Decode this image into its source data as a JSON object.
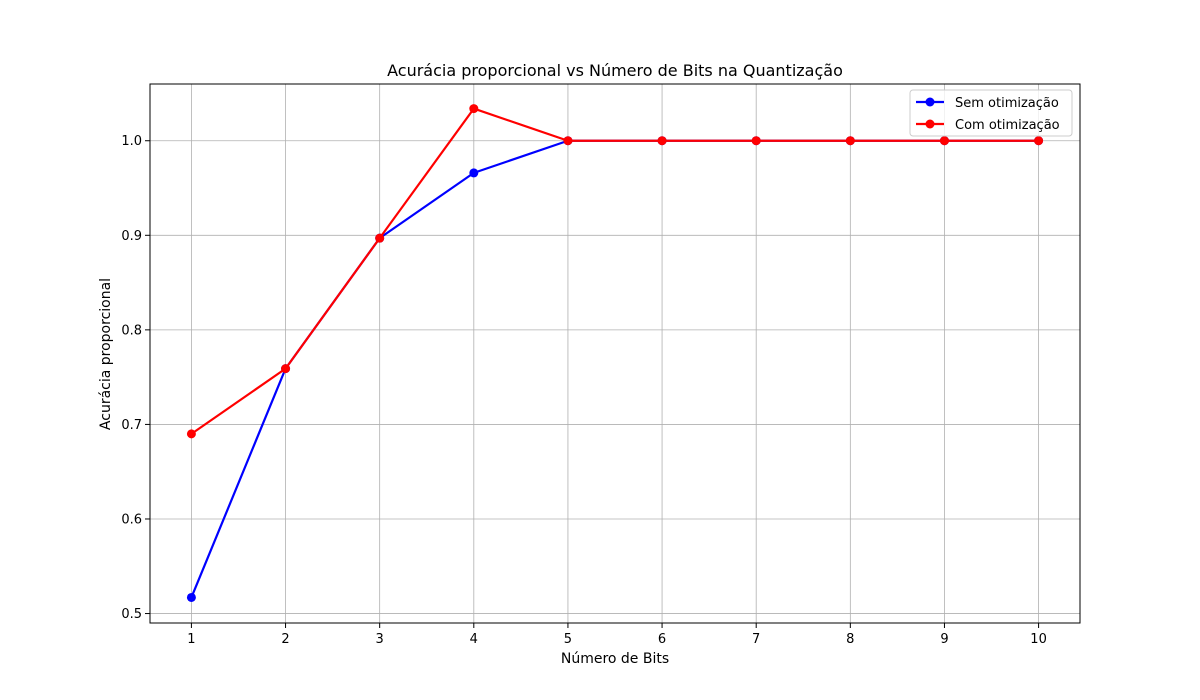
{
  "chart_data": {
    "type": "line",
    "title": "Acurácia proporcional vs Número de Bits na Quantização",
    "xlabel": "Número de Bits",
    "ylabel": "Acurácia proporcional",
    "x": [
      1,
      2,
      3,
      4,
      5,
      6,
      7,
      8,
      9,
      10
    ],
    "xticks": [
      "1",
      "2",
      "3",
      "4",
      "5",
      "6",
      "7",
      "8",
      "9",
      "10"
    ],
    "xlim": [
      0.56,
      10.44
    ],
    "ylim": [
      0.49,
      1.06
    ],
    "yticks": [
      0.5,
      0.6,
      0.7,
      0.8,
      0.9,
      1.0
    ],
    "yticklabels": [
      "0.5",
      "0.6",
      "0.7",
      "0.8",
      "0.9",
      "1.0"
    ],
    "grid": true,
    "legend_position": "top-right",
    "series": [
      {
        "name": "Sem otimização",
        "color": "#0000ff",
        "marker": "circle",
        "values": [
          0.517,
          0.759,
          0.897,
          0.966,
          1.0,
          1.0,
          1.0,
          1.0,
          1.0,
          1.0
        ]
      },
      {
        "name": "Com otimização",
        "color": "#ff0000",
        "marker": "circle",
        "values": [
          0.69,
          0.759,
          0.897,
          1.034,
          1.0,
          1.0,
          1.0,
          1.0,
          1.0,
          1.0
        ]
      }
    ]
  }
}
